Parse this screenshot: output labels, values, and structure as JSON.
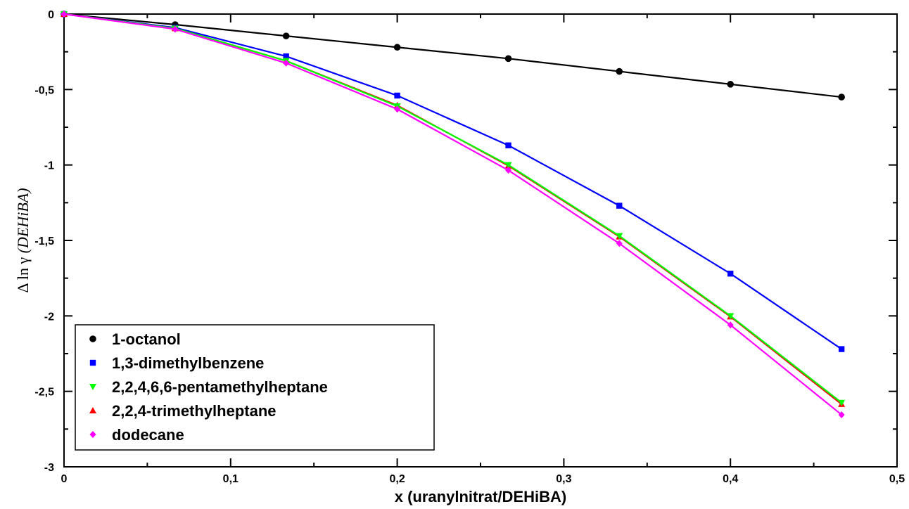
{
  "chart_data": {
    "type": "line",
    "xlabel": "x (uranylnitrat/DEHiBA)",
    "ylabel": {
      "prefix": "Δ ln γ ",
      "italic": "(DEHiBA)"
    },
    "xlim": [
      0,
      0.5
    ],
    "ylim": [
      -3,
      0
    ],
    "x_ticks": [
      {
        "value": 0,
        "label": "0"
      },
      {
        "value": 0.1,
        "label": "0,1"
      },
      {
        "value": 0.2,
        "label": "0,2"
      },
      {
        "value": 0.3,
        "label": "0,3"
      },
      {
        "value": 0.4,
        "label": "0,4"
      },
      {
        "value": 0.5,
        "label": "0,5"
      }
    ],
    "y_ticks": [
      {
        "value": 0,
        "label": "0"
      },
      {
        "value": -0.5,
        "label": "-0,5"
      },
      {
        "value": -1,
        "label": "-1"
      },
      {
        "value": -1.5,
        "label": "-1,5"
      },
      {
        "value": -2,
        "label": "-2"
      },
      {
        "value": -2.5,
        "label": "-2,5"
      },
      {
        "value": -3,
        "label": "-3"
      }
    ],
    "grid": false,
    "legend_position": "bottom-left",
    "x": [
      0,
      0.0667,
      0.1333,
      0.2,
      0.2667,
      0.3333,
      0.4,
      0.4667
    ],
    "series": [
      {
        "name": "1-octanol",
        "color": "#000000",
        "marker": "circle",
        "values": [
          0,
          -0.07,
          -0.145,
          -0.22,
          -0.295,
          -0.38,
          -0.465,
          -0.55
        ]
      },
      {
        "name": "1,3-dimethylbenzene",
        "color": "#0000ff",
        "marker": "square",
        "values": [
          0,
          -0.09,
          -0.28,
          -0.54,
          -0.87,
          -1.27,
          -1.72,
          -2.22
        ]
      },
      {
        "name": "2,2,4,6,6-pentamethylheptane",
        "color": "#00ff00",
        "marker": "triangle-down",
        "values": [
          0,
          -0.095,
          -0.31,
          -0.61,
          -1.0,
          -1.47,
          -2.0,
          -2.575
        ]
      },
      {
        "name": "2,2,4-trimethylheptane",
        "color": "#ff0000",
        "marker": "triangle-up",
        "values": [
          0,
          -0.095,
          -0.31,
          -0.605,
          -1.005,
          -1.475,
          -2.005,
          -2.585
        ]
      },
      {
        "name": "dodecane",
        "color": "#ff00ff",
        "marker": "diamond",
        "values": [
          0,
          -0.1,
          -0.325,
          -0.63,
          -1.035,
          -1.52,
          -2.06,
          -2.655
        ]
      }
    ]
  }
}
